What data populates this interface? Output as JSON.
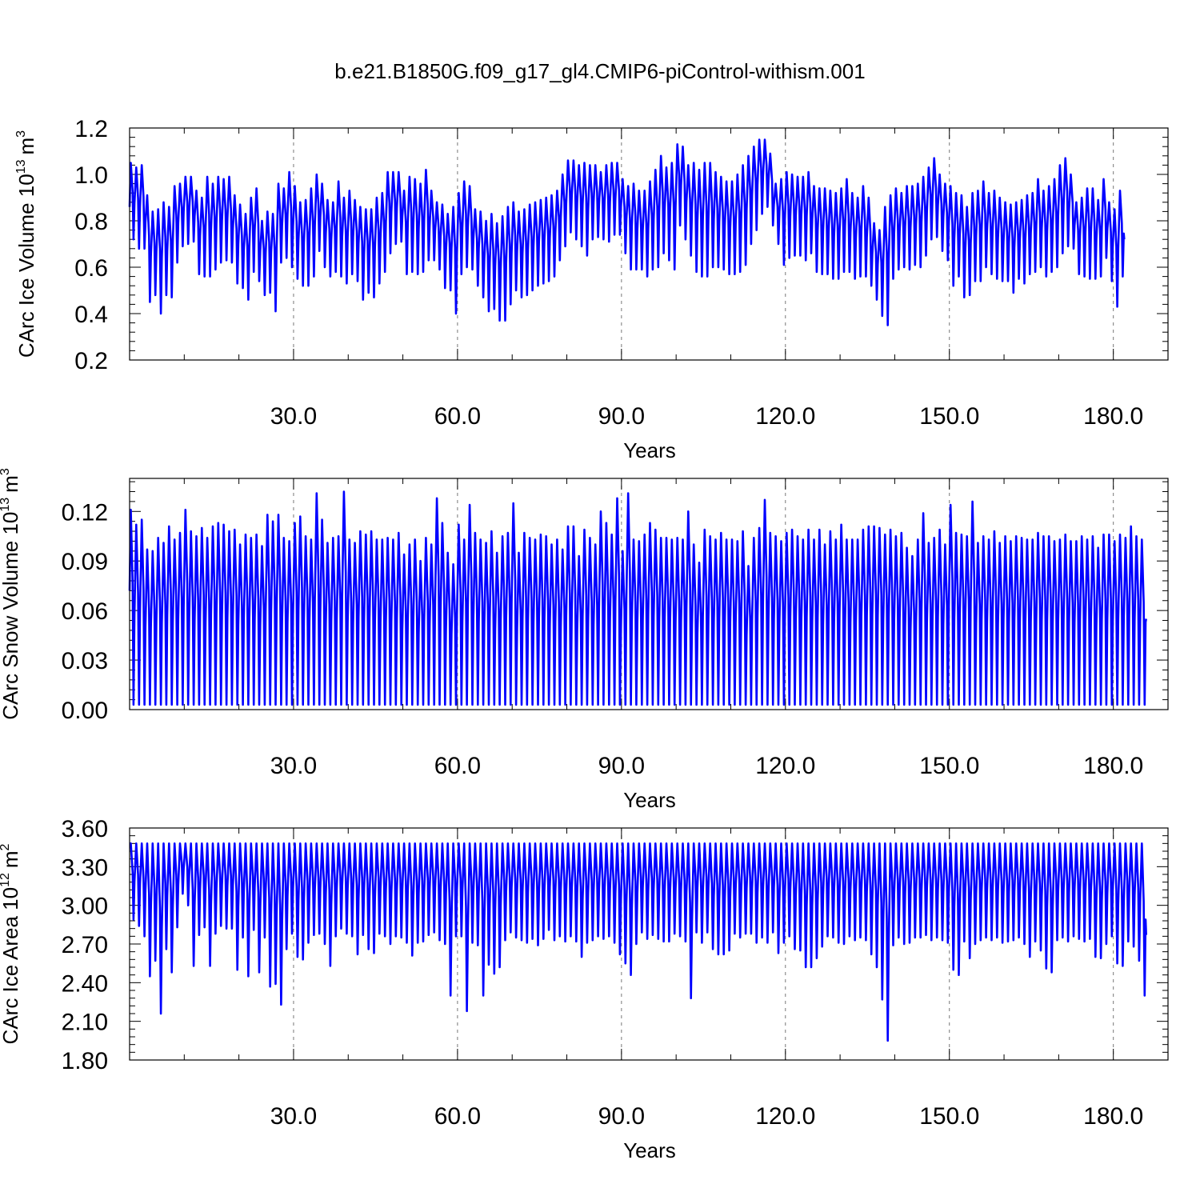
{
  "figure": {
    "title": "b.e21.B1850G.f09_g17_gl4.CMIP6-piControl-withism.001",
    "series_color": "#0000ff"
  },
  "chart_data": [
    {
      "type": "line",
      "title": "",
      "xlabel": "Years",
      "ylabel": "CArc Ice Volume 10",
      "ylabel_exponent": "13",
      "ylabel_unit": "m",
      "ylabel_unit_exponent": "3",
      "xlim": [
        0,
        190
      ],
      "ylim": [
        0.2,
        1.2
      ],
      "x_ticks": [
        30,
        60,
        90,
        120,
        150,
        180
      ],
      "x_tick_labels": [
        "30.0",
        "60.0",
        "90.0",
        "120.0",
        "150.0",
        "180.0"
      ],
      "y_ticks": [
        0.2,
        0.4,
        0.6,
        0.8,
        1.0,
        1.2
      ],
      "y_tick_labels": [
        "0.2",
        "0.4",
        "0.6",
        "0.8",
        "1.0",
        "1.2"
      ],
      "grid": "dashed vertical at major x ticks",
      "series": [
        {
          "max": [
            1.05,
            1.03,
            1.04,
            0.91,
            0.84,
            0.85,
            0.88,
            0.86,
            0.95,
            0.96,
            0.99,
            0.99,
            0.93,
            0.9,
            0.99,
            0.96,
            0.99,
            0.98,
            0.99,
            0.91,
            0.87,
            0.83,
            0.9,
            0.94,
            0.8,
            0.84,
            0.83,
            0.96,
            0.94,
            1.01,
            0.95,
            0.88,
            0.89,
            0.94,
            1.0,
            0.96,
            0.89,
            0.88,
            0.97,
            0.9,
            0.93,
            0.89,
            0.86,
            0.85,
            0.85,
            0.9,
            0.92,
            1.01,
            1.01,
            1.01,
            0.93,
            0.99,
            0.98,
            0.96,
            1.02,
            0.93,
            0.88,
            0.87,
            0.83,
            0.86,
            0.92,
            0.97,
            0.95,
            0.85,
            0.84,
            0.8,
            0.83,
            0.79,
            0.82,
            0.86,
            0.88,
            0.84,
            0.85,
            0.87,
            0.88,
            0.89,
            0.9,
            0.91,
            0.93,
            1.0,
            1.06,
            1.06,
            1.04,
            1.05,
            1.04,
            1.04,
            1.01,
            1.04,
            1.05,
            1.05,
            0.98,
            0.95,
            0.96,
            0.93,
            0.93,
            0.97,
            1.02,
            1.08,
            1.03,
            1.05,
            1.13,
            1.12,
            1.04,
            1.05,
            1.02,
            1.05,
            1.05,
            1.01,
            0.99,
            0.97,
            0.97,
            1.0,
            1.04,
            1.08,
            1.12,
            1.15,
            1.15,
            1.09,
            0.96,
            0.98,
            1.01,
            1.0,
            0.99,
            0.99,
            1.01,
            0.95,
            0.94,
            0.94,
            0.93,
            0.92,
            0.94,
            0.98,
            0.92,
            0.9,
            0.95,
            0.9,
            0.79,
            0.76,
            0.86,
            0.91,
            0.94,
            0.92,
            0.95,
            0.95,
            0.96,
            0.99,
            1.03,
            1.07,
            1.0,
            0.96,
            0.95,
            0.92,
            0.91,
            0.86,
            0.92,
            0.93,
            0.97,
            0.92,
            0.93,
            0.9,
            0.88,
            0.87,
            0.88,
            0.89,
            0.91,
            0.92,
            0.98,
            0.93,
            0.95,
            0.98,
            1.04,
            1.07,
            1.0,
            0.88,
            0.9,
            0.94,
            0.94,
            0.89,
            0.98,
            0.88,
            0.85,
            0.93
          ],
          "min": [
            0.72,
            0.68,
            0.68,
            0.45,
            0.48,
            0.4,
            0.48,
            0.47,
            0.62,
            0.69,
            0.7,
            0.71,
            0.57,
            0.56,
            0.56,
            0.59,
            0.62,
            0.63,
            0.62,
            0.53,
            0.51,
            0.46,
            0.58,
            0.54,
            0.48,
            0.49,
            0.41,
            0.62,
            0.64,
            0.6,
            0.55,
            0.52,
            0.52,
            0.56,
            0.67,
            0.6,
            0.56,
            0.58,
            0.56,
            0.53,
            0.57,
            0.54,
            0.46,
            0.49,
            0.47,
            0.53,
            0.58,
            0.66,
            0.7,
            0.71,
            0.57,
            0.58,
            0.57,
            0.58,
            0.63,
            0.63,
            0.59,
            0.51,
            0.5,
            0.4,
            0.57,
            0.6,
            0.59,
            0.52,
            0.47,
            0.41,
            0.42,
            0.37,
            0.37,
            0.44,
            0.5,
            0.47,
            0.48,
            0.5,
            0.52,
            0.53,
            0.54,
            0.56,
            0.63,
            0.69,
            0.75,
            0.72,
            0.69,
            0.65,
            0.72,
            0.73,
            0.72,
            0.71,
            0.74,
            0.74,
            0.66,
            0.59,
            0.59,
            0.59,
            0.56,
            0.59,
            0.6,
            0.66,
            0.63,
            0.59,
            0.78,
            0.72,
            0.65,
            0.58,
            0.56,
            0.56,
            0.6,
            0.6,
            0.59,
            0.57,
            0.57,
            0.58,
            0.61,
            0.7,
            0.76,
            0.83,
            0.86,
            0.78,
            0.7,
            0.61,
            0.64,
            0.65,
            0.65,
            0.63,
            0.66,
            0.58,
            0.57,
            0.57,
            0.55,
            0.55,
            0.58,
            0.58,
            0.55,
            0.56,
            0.56,
            0.52,
            0.46,
            0.39,
            0.35,
            0.55,
            0.59,
            0.6,
            0.59,
            0.61,
            0.6,
            0.65,
            0.72,
            0.73,
            0.67,
            0.63,
            0.52,
            0.56,
            0.47,
            0.48,
            0.54,
            0.54,
            0.6,
            0.57,
            0.55,
            0.54,
            0.54,
            0.49,
            0.55,
            0.53,
            0.57,
            0.58,
            0.6,
            0.56,
            0.58,
            0.6,
            0.66,
            0.69,
            0.68,
            0.57,
            0.56,
            0.55,
            0.55,
            0.56,
            0.64,
            0.54,
            0.43,
            0.56
          ],
          "start": 0.86,
          "end": 0.72
        }
      ]
    },
    {
      "type": "line",
      "title": "",
      "xlabel": "Years",
      "ylabel": "CArc Snow Volume 10",
      "ylabel_exponent": "13",
      "ylabel_unit": "m",
      "ylabel_unit_exponent": "3",
      "xlim": [
        0,
        190
      ],
      "ylim": [
        0.0,
        0.14
      ],
      "x_ticks": [
        30,
        60,
        90,
        120,
        150,
        180
      ],
      "x_tick_labels": [
        "30.0",
        "60.0",
        "90.0",
        "120.0",
        "150.0",
        "180.0"
      ],
      "y_ticks": [
        0.0,
        0.03,
        0.06,
        0.09,
        0.12
      ],
      "y_tick_labels": [
        "0.00",
        "0.03",
        "0.06",
        "0.09",
        "0.12"
      ],
      "grid": "dashed vertical at major x ticks",
      "series": [
        {
          "max": [
            0.121,
            0.112,
            0.115,
            0.097,
            0.096,
            0.104,
            0.101,
            0.111,
            0.103,
            0.107,
            0.121,
            0.108,
            0.105,
            0.11,
            0.104,
            0.111,
            0.113,
            0.112,
            0.108,
            0.109,
            0.1,
            0.106,
            0.104,
            0.106,
            0.099,
            0.118,
            0.114,
            0.118,
            0.104,
            0.102,
            0.113,
            0.117,
            0.105,
            0.103,
            0.131,
            0.115,
            0.101,
            0.104,
            0.105,
            0.132,
            0.103,
            0.101,
            0.108,
            0.106,
            0.108,
            0.103,
            0.103,
            0.104,
            0.103,
            0.107,
            0.094,
            0.1,
            0.103,
            0.09,
            0.104,
            0.1,
            0.128,
            0.113,
            0.095,
            0.088,
            0.112,
            0.103,
            0.124,
            0.107,
            0.103,
            0.101,
            0.108,
            0.095,
            0.105,
            0.107,
            0.125,
            0.095,
            0.107,
            0.104,
            0.103,
            0.106,
            0.105,
            0.1,
            0.103,
            0.097,
            0.111,
            0.111,
            0.093,
            0.109,
            0.104,
            0.1,
            0.12,
            0.113,
            0.106,
            0.128,
            0.096,
            0.131,
            0.103,
            0.102,
            0.106,
            0.113,
            0.109,
            0.104,
            0.104,
            0.103,
            0.104,
            0.103,
            0.12,
            0.1,
            0.089,
            0.109,
            0.105,
            0.103,
            0.107,
            0.103,
            0.103,
            0.102,
            0.108,
            0.087,
            0.104,
            0.11,
            0.127,
            0.107,
            0.105,
            0.102,
            0.107,
            0.109,
            0.105,
            0.103,
            0.109,
            0.103,
            0.109,
            0.1,
            0.108,
            0.103,
            0.112,
            0.103,
            0.103,
            0.103,
            0.109,
            0.111,
            0.111,
            0.11,
            0.106,
            0.109,
            0.105,
            0.107,
            0.098,
            0.093,
            0.103,
            0.119,
            0.101,
            0.104,
            0.109,
            0.1,
            0.124,
            0.107,
            0.106,
            0.105,
            0.126,
            0.101,
            0.105,
            0.103,
            0.108,
            0.101,
            0.105,
            0.102,
            0.105,
            0.104,
            0.103,
            0.103,
            0.107,
            0.105,
            0.105,
            0.102,
            0.103,
            0.106,
            0.102,
            0.102,
            0.105,
            0.103,
            0.105,
            0.098,
            0.106,
            0.106,
            0.102,
            0.106,
            0.104,
            0.111,
            0.105,
            0.103
          ],
          "min": 0.003,
          "start": 0.072,
          "end": 0.055
        }
      ]
    },
    {
      "type": "line",
      "title": "",
      "xlabel": "Years",
      "ylabel": "CArc Ice Area 10",
      "ylabel_exponent": "12",
      "ylabel_unit": "m",
      "ylabel_unit_exponent": "2",
      "xlim": [
        0,
        190
      ],
      "ylim": [
        1.8,
        3.6
      ],
      "x_ticks": [
        30,
        60,
        90,
        120,
        150,
        180
      ],
      "x_tick_labels": [
        "30.0",
        "60.0",
        "90.0",
        "120.0",
        "150.0",
        "180.0"
      ],
      "y_ticks": [
        1.8,
        2.1,
        2.4,
        2.7,
        3.0,
        3.3,
        3.6
      ],
      "y_tick_labels": [
        "1.80",
        "2.10",
        "2.40",
        "2.70",
        "3.00",
        "3.30",
        "3.60"
      ],
      "grid": "dashed vertical at major x ticks",
      "series": [
        {
          "max": 3.48,
          "min": [
            2.89,
            2.84,
            2.76,
            2.45,
            2.57,
            2.16,
            2.66,
            2.48,
            2.83,
            3.09,
            3.0,
            2.53,
            2.77,
            2.83,
            2.53,
            2.78,
            2.84,
            2.82,
            2.82,
            2.5,
            2.75,
            2.45,
            2.81,
            2.48,
            2.75,
            2.37,
            2.39,
            2.23,
            2.66,
            2.78,
            2.6,
            2.58,
            2.71,
            2.77,
            2.78,
            2.7,
            2.53,
            2.76,
            2.82,
            2.78,
            2.76,
            2.62,
            2.77,
            2.66,
            2.63,
            2.78,
            2.76,
            2.7,
            2.76,
            2.75,
            2.71,
            2.61,
            2.71,
            2.72,
            2.77,
            2.79,
            2.73,
            2.7,
            2.3,
            2.76,
            2.76,
            2.18,
            2.71,
            2.69,
            2.3,
            2.54,
            2.47,
            2.52,
            2.73,
            2.79,
            2.75,
            2.73,
            2.71,
            2.74,
            2.69,
            2.74,
            2.81,
            2.73,
            2.76,
            2.72,
            2.76,
            2.72,
            2.6,
            2.71,
            2.73,
            2.76,
            2.74,
            2.76,
            2.71,
            2.62,
            2.55,
            2.46,
            2.7,
            2.79,
            2.74,
            2.77,
            2.74,
            2.72,
            2.72,
            2.78,
            2.76,
            2.72,
            2.28,
            2.79,
            2.71,
            2.79,
            2.66,
            2.62,
            2.62,
            2.65,
            2.78,
            2.75,
            2.78,
            2.78,
            2.71,
            2.75,
            2.71,
            2.79,
            2.63,
            2.71,
            2.76,
            2.66,
            2.65,
            2.52,
            2.52,
            2.59,
            2.68,
            2.76,
            2.75,
            2.71,
            2.7,
            2.76,
            2.73,
            2.75,
            2.73,
            2.62,
            2.52,
            2.27,
            1.95,
            2.69,
            2.75,
            2.7,
            2.71,
            2.75,
            2.75,
            2.77,
            2.73,
            2.75,
            2.73,
            2.71,
            2.5,
            2.46,
            2.72,
            2.59,
            2.7,
            2.73,
            2.75,
            2.73,
            2.75,
            2.71,
            2.72,
            2.73,
            2.75,
            2.7,
            2.6,
            2.72,
            2.65,
            2.51,
            2.48,
            2.73,
            2.75,
            2.72,
            2.76,
            2.74,
            2.72,
            2.74,
            2.6,
            2.59,
            2.7,
            2.76,
            2.55,
            2.53,
            2.72,
            2.68,
            2.57,
            2.3
          ],
          "start": 3.48,
          "end": 2.77
        }
      ]
    }
  ]
}
